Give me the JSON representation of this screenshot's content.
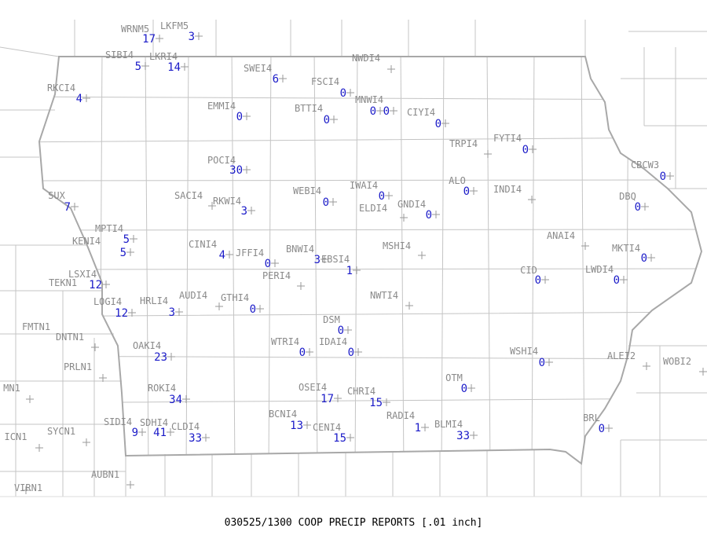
{
  "title": "030525/1300 COOP PRECIP REPORTS [.01 inch]",
  "stations": [
    {
      "name": "WRNM5",
      "value": 17
    },
    {
      "name": "LKFM5",
      "value": 3
    },
    {
      "name": "SIBI4",
      "value": 5
    },
    {
      "name": "LKRI4",
      "value": 14
    },
    {
      "name": "SWEI4",
      "value": 6
    },
    {
      "name": "NWDI4",
      "value": null
    },
    {
      "name": "RKCI4",
      "value": 4
    },
    {
      "name": "FSCI4",
      "value": 0
    },
    {
      "name": "MNWI4",
      "value": 0
    },
    {
      "name": null,
      "value": 0
    },
    {
      "name": "EMMI4",
      "value": 0
    },
    {
      "name": "BTTI4",
      "value": 0
    },
    {
      "name": "CIYI4",
      "value": 0
    },
    {
      "name": "TRPI4",
      "value": null
    },
    {
      "name": "FYTI4",
      "value": 0
    },
    {
      "name": "POCI4",
      "value": 30
    },
    {
      "name": "CBCW3",
      "value": 0
    },
    {
      "name": "SACI4",
      "value": null
    },
    {
      "name": "RKWI4",
      "value": 3
    },
    {
      "name": "WEBI4",
      "value": 0
    },
    {
      "name": "IWAI4",
      "value": 0
    },
    {
      "name": "ELDI4",
      "value": null
    },
    {
      "name": "GNDI4",
      "value": 0
    },
    {
      "name": "ALO",
      "value": 0
    },
    {
      "name": "INDI4",
      "value": null
    },
    {
      "name": "DBQ",
      "value": 0
    },
    {
      "name": "SUX",
      "value": 7
    },
    {
      "name": "MPTI4",
      "value": 5
    },
    {
      "name": "KENI4",
      "value": 5
    },
    {
      "name": "CINI4",
      "value": 4
    },
    {
      "name": "JFFI4",
      "value": 0
    },
    {
      "name": "BNWI4",
      "value": 3
    },
    {
      "name": "EBSI4",
      "value": 1
    },
    {
      "name": "MSHI4",
      "value": null
    },
    {
      "name": "ANAI4",
      "value": null
    },
    {
      "name": "MKTI4",
      "value": 0
    },
    {
      "name": "LSXI4",
      "value": 12
    },
    {
      "name": "TEKN1",
      "value": null
    },
    {
      "name": "PERI4",
      "value": null
    },
    {
      "name": "CID",
      "value": 0
    },
    {
      "name": "LWDI4",
      "value": 0
    },
    {
      "name": "LOGI4",
      "value": 12
    },
    {
      "name": "HRLI4",
      "value": 3
    },
    {
      "name": "AUDI4",
      "value": null
    },
    {
      "name": "GTHI4",
      "value": 0
    },
    {
      "name": "NWTI4",
      "value": null
    },
    {
      "name": "DSM",
      "value": 0
    },
    {
      "name": "FMTN1",
      "value": null
    },
    {
      "name": "DNTN1",
      "value": null
    },
    {
      "name": "OAKI4",
      "value": 23
    },
    {
      "name": "WTRI4",
      "value": 0
    },
    {
      "name": "IDAI4",
      "value": 0
    },
    {
      "name": "WSHI4",
      "value": 0
    },
    {
      "name": "ALEI2",
      "value": null
    },
    {
      "name": "WOBI2",
      "value": null
    },
    {
      "name": "PRLN1",
      "value": null
    },
    {
      "name": "OTM",
      "value": 0
    },
    {
      "name": "MN1",
      "value": null
    },
    {
      "name": "ROKI4",
      "value": 34
    },
    {
      "name": "OSEI4",
      "value": 17
    },
    {
      "name": "CHRI4",
      "value": 15
    },
    {
      "name": "BCNI4",
      "value": 13
    },
    {
      "name": "RADI4",
      "value": 1
    },
    {
      "name": "BLMI4",
      "value": 33
    },
    {
      "name": "BRL",
      "value": 0
    },
    {
      "name": "SIDI4",
      "value": 9
    },
    {
      "name": "SDHI4",
      "value": 41
    },
    {
      "name": "CLDI4",
      "value": 33
    },
    {
      "name": "CENI4",
      "value": 15
    },
    {
      "name": "SYCN1",
      "value": null
    },
    {
      "name": "ICN1",
      "value": null
    },
    {
      "name": "AUBN1",
      "value": null
    },
    {
      "name": "VIRN1",
      "value": null
    }
  ]
}
